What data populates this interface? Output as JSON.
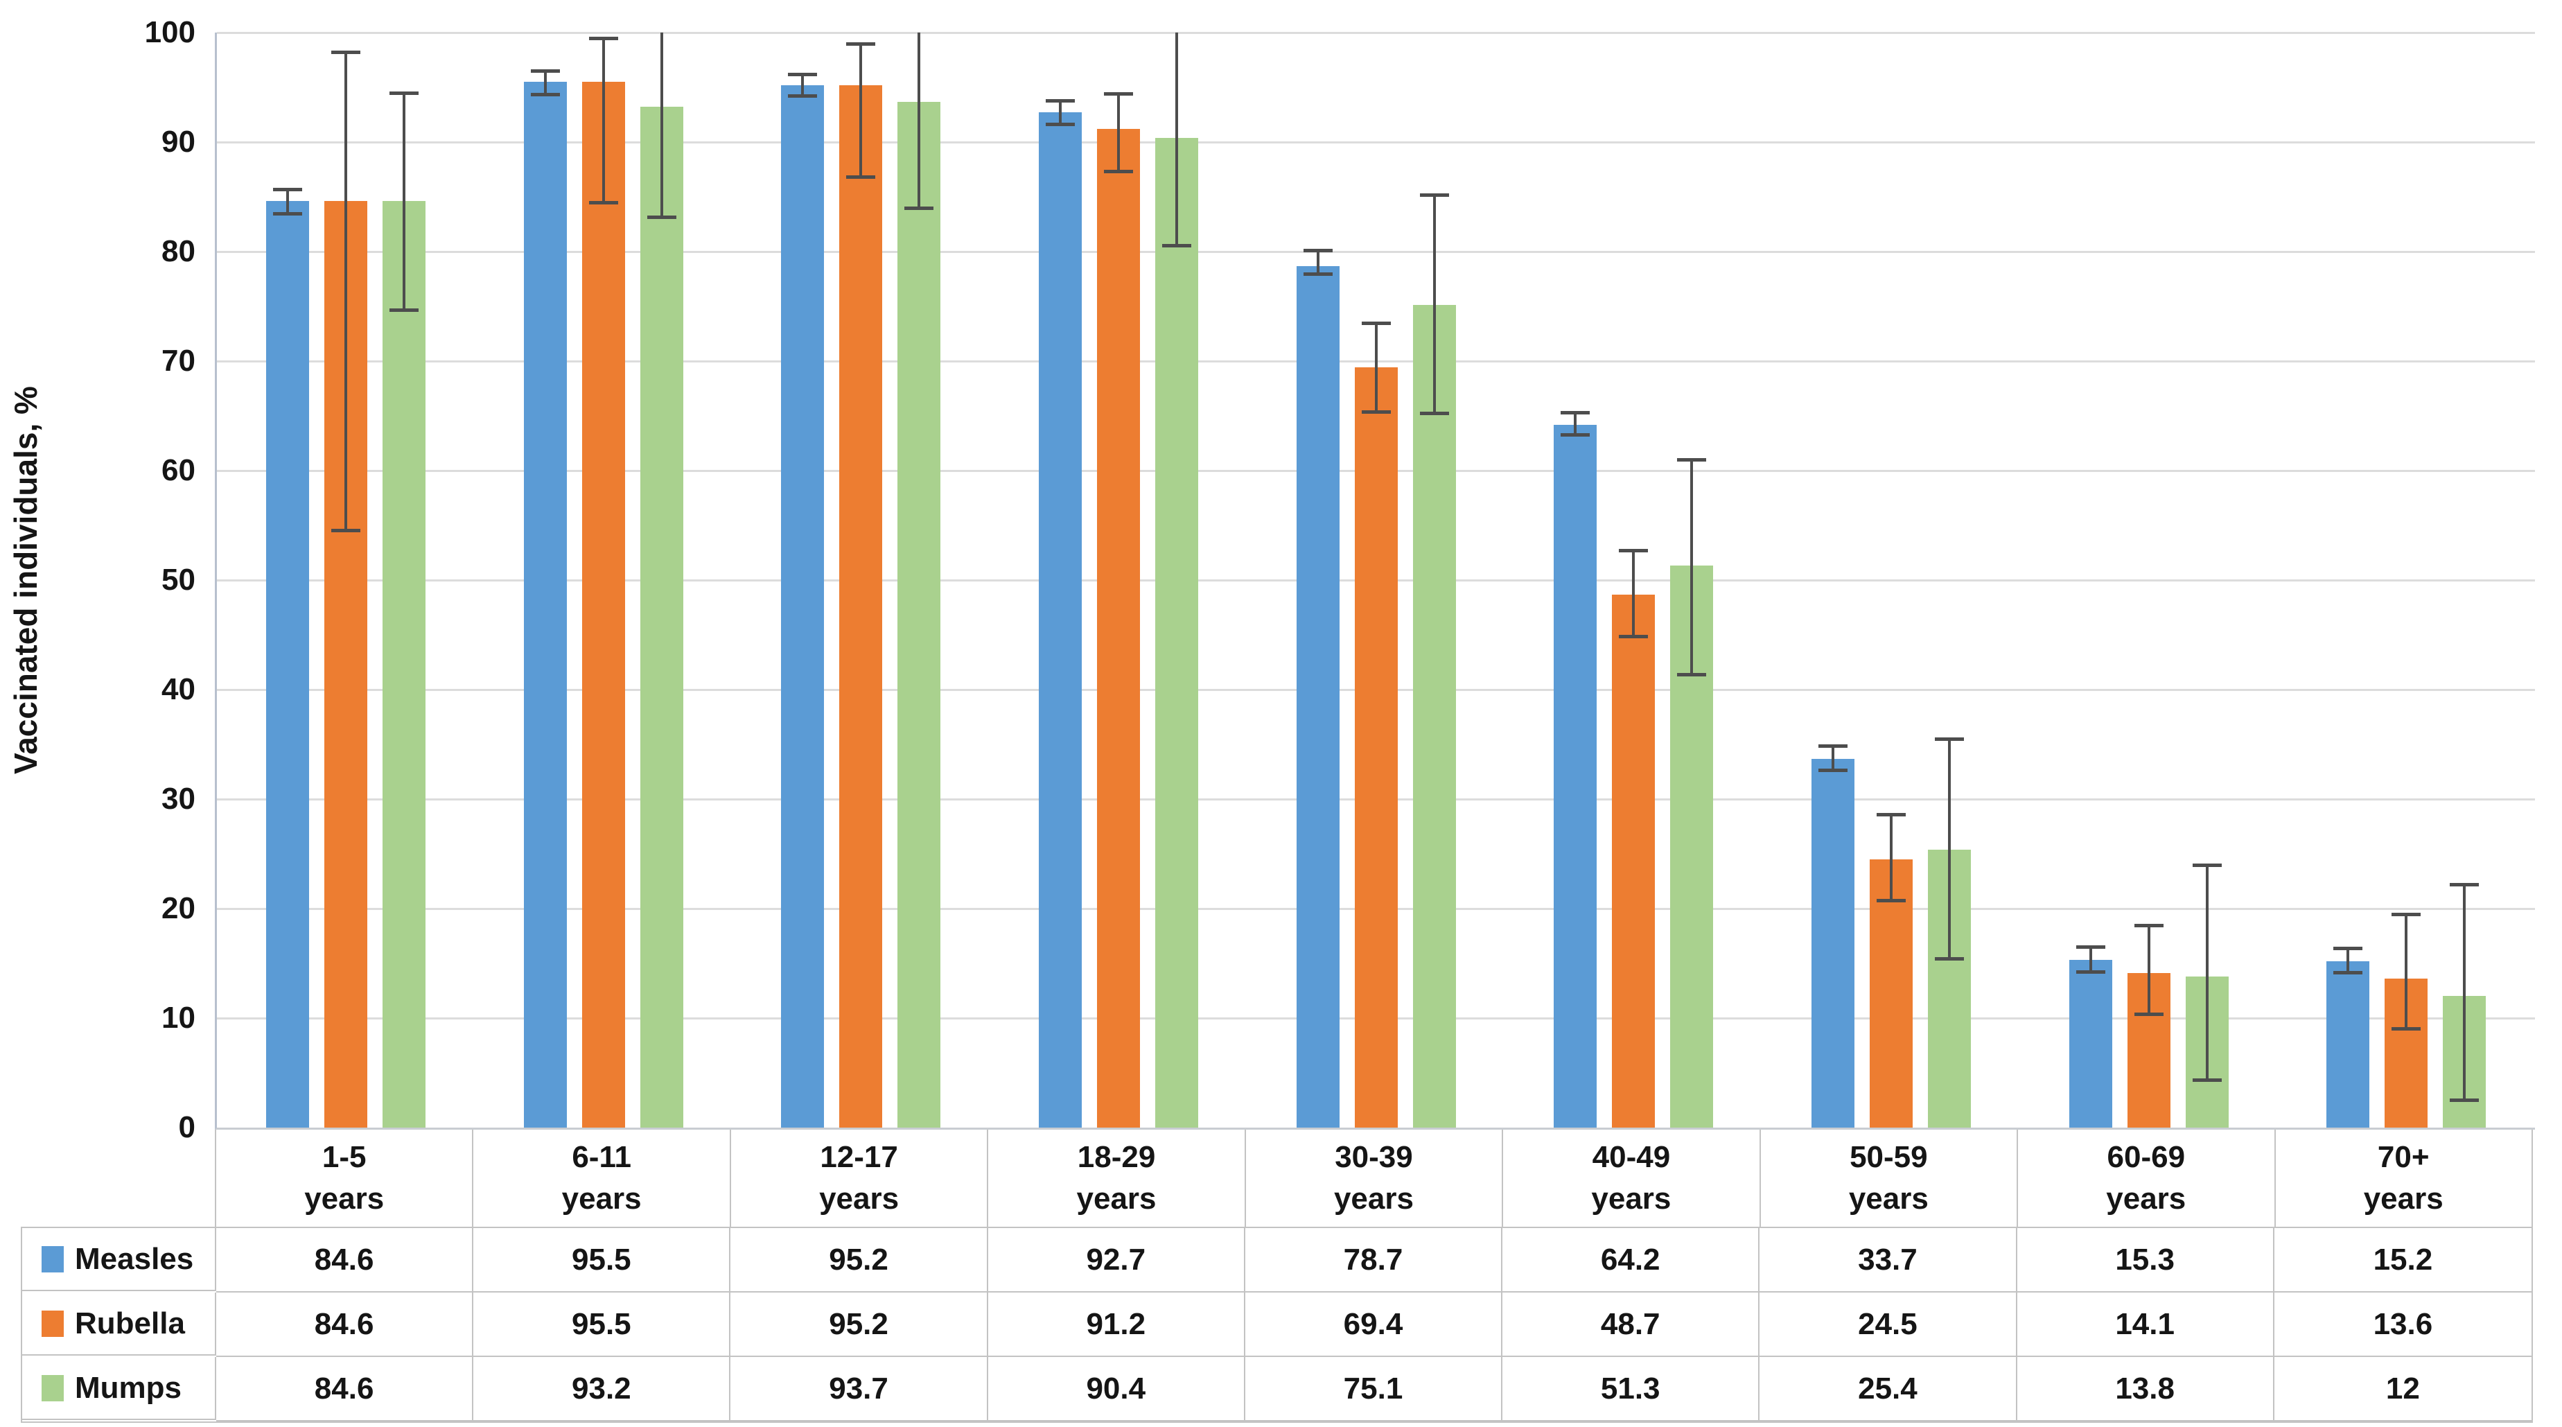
{
  "chart_data": {
    "type": "bar",
    "title": "",
    "ylabel": "Vaccinated individuals, %",
    "ylim": [
      0,
      100
    ],
    "yticks": [
      100,
      90,
      80,
      70,
      60,
      50,
      40,
      30,
      20,
      10,
      0
    ],
    "grid": "horizontal",
    "legend_position": "table-left",
    "categories": [
      "1-5",
      "6-11",
      "12-17",
      "18-29",
      "30-39",
      "40-49",
      "50-59",
      "60-69",
      "70+"
    ],
    "category_unit": "years",
    "series": [
      {
        "name": "Measles",
        "color": "#5B9BD5",
        "values": [
          84.6,
          95.5,
          95.2,
          92.7,
          78.7,
          64.2,
          33.7,
          15.3,
          15.2
        ],
        "err_lo": [
          83.4,
          94.3,
          94.2,
          91.6,
          77.9,
          63.2,
          32.6,
          14.2,
          14.1
        ],
        "err_hi": [
          85.7,
          96.5,
          96.2,
          93.8,
          80.1,
          65.3,
          34.9,
          16.5,
          16.4
        ]
      },
      {
        "name": "Rubella",
        "color": "#ED7D31",
        "values": [
          84.6,
          95.5,
          95.2,
          91.2,
          69.4,
          48.7,
          24.5,
          14.1,
          13.6
        ],
        "err_lo": [
          54.5,
          84.4,
          86.8,
          87.3,
          65.3,
          44.8,
          20.7,
          10.3,
          9.0
        ],
        "err_hi": [
          98.2,
          99.5,
          99.0,
          94.4,
          73.5,
          52.7,
          28.6,
          18.5,
          19.5
        ]
      },
      {
        "name": "Mumps",
        "color": "#A9D18E",
        "values": [
          84.6,
          93.2,
          93.7,
          90.4,
          75.1,
          51.3,
          25.4,
          13.8,
          12
        ],
        "err_lo": [
          74.6,
          83.1,
          83.9,
          80.5,
          65.2,
          41.3,
          15.4,
          4.3,
          2.5
        ],
        "err_hi": [
          94.5,
          100.5,
          100.2,
          100.0,
          85.2,
          61.0,
          35.5,
          24.0,
          22.2
        ]
      }
    ],
    "colors": {
      "gridline": "#dcdcdc",
      "y_axis_line": "#b7c0ce",
      "x_axis_line": "#c9cdd2",
      "error_bar": "#4d4d4d",
      "table_border": "#c3c3c3",
      "text": "#151515"
    }
  }
}
